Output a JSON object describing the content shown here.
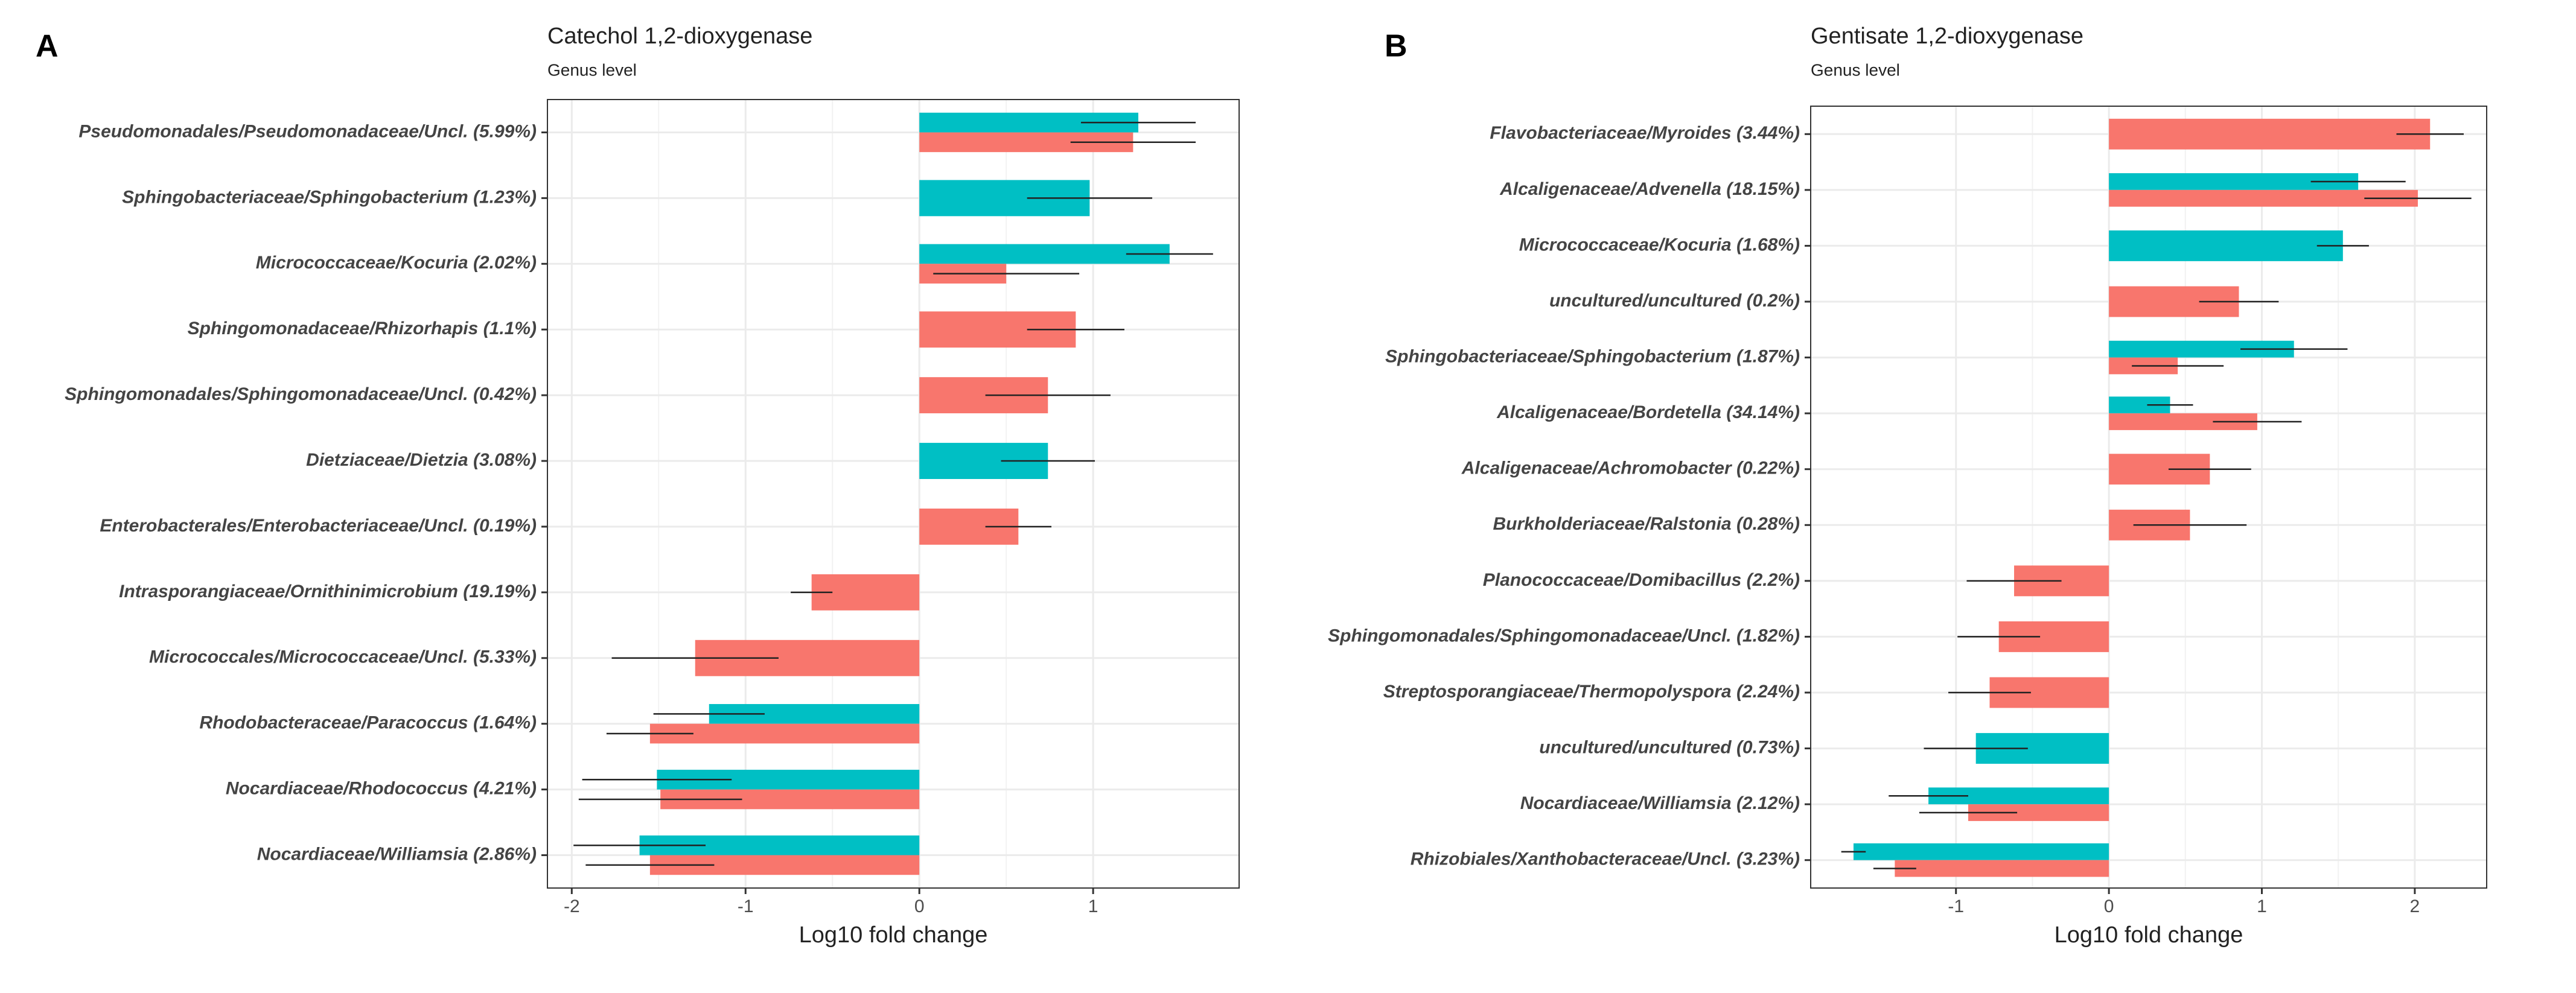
{
  "chart_data": [
    {
      "type": "bar",
      "orientation": "horizontal",
      "panel_label": "A",
      "title": "Catechol 1,2-dioxygenase",
      "subtitle": "Genus level",
      "xlabel": "Log10 fold change",
      "categories": [
        "Pseudomonadales/Pseudomonadaceae/Uncl. (5.99%)",
        "Sphingobacteriaceae/Sphingobacterium (1.23%)",
        "Micrococcaceae/Kocuria (2.02%)",
        "Sphingomonadaceae/Rhizorhapis (1.1%)",
        "Sphingomonadales/Sphingomonadaceae/Uncl. (0.42%)",
        "Dietziaceae/Dietzia (3.08%)",
        "Enterobacterales/Enterobacteriaceae/Uncl. (0.19%)",
        "Intrasporangiaceae/Ornithinimicrobium (19.19%)",
        "Micrococcales/Micrococcaceae/Uncl. (5.33%)",
        "Rhodobacteraceae/Paracoccus (1.64%)",
        "Nocardiaceae/Rhodococcus (4.21%)",
        "Nocardiaceae/Williamsia (2.86%)"
      ],
      "series": [
        {
          "color": "#00BFC4",
          "values": [
            1.26,
            0.98,
            1.44,
            null,
            null,
            0.74,
            null,
            null,
            null,
            -1.21,
            -1.51,
            -1.61
          ],
          "errors": [
            0.33,
            0.36,
            0.25,
            null,
            null,
            0.27,
            null,
            null,
            null,
            0.32,
            0.43,
            0.38
          ]
        },
        {
          "color": "#F8766D",
          "values": [
            1.23,
            null,
            0.5,
            0.9,
            0.74,
            null,
            0.57,
            -0.62,
            -1.29,
            -1.55,
            -1.49,
            -1.55
          ],
          "errors": [
            0.36,
            null,
            0.42,
            0.28,
            0.36,
            null,
            0.19,
            0.12,
            0.48,
            0.25,
            0.47,
            0.37
          ]
        }
      ],
      "xlim": [
        -2.14,
        1.84
      ],
      "xticks": [
        -2,
        -1,
        0,
        1
      ],
      "grid": true
    },
    {
      "type": "bar",
      "orientation": "horizontal",
      "panel_label": "B",
      "title": "Gentisate 1,2-dioxygenase",
      "subtitle": "Genus level",
      "xlabel": "Log10 fold change",
      "categories": [
        "Flavobacteriaceae/Myroides (3.44%)",
        "Alcaligenaceae/Advenella (18.15%)",
        "Micrococcaceae/Kocuria (1.68%)",
        "uncultured/uncultured (0.2%)",
        "Sphingobacteriaceae/Sphingobacterium (1.87%)",
        "Alcaligenaceae/Bordetella (34.14%)",
        "Alcaligenaceae/Achromobacter (0.22%)",
        "Burkholderiaceae/Ralstonia (0.28%)",
        "Planococcaceae/Domibacillus (2.2%)",
        "Sphingomonadales/Sphingomonadaceae/Uncl. (1.82%)",
        "Streptosporangiaceae/Thermopolyspora (2.24%)",
        "uncultured/uncultured (0.73%)",
        "Nocardiaceae/Williamsia (2.12%)",
        "Rhizobiales/Xanthobacteraceae/Uncl. (3.23%)"
      ],
      "series": [
        {
          "color": "#00BFC4",
          "values": [
            null,
            1.63,
            1.53,
            null,
            1.21,
            0.4,
            null,
            null,
            null,
            null,
            null,
            -0.87,
            -1.18,
            -1.67
          ],
          "errors": [
            null,
            0.31,
            0.17,
            null,
            0.35,
            0.15,
            null,
            null,
            null,
            null,
            null,
            0.34,
            0.26,
            0.08
          ]
        },
        {
          "color": "#F8766D",
          "values": [
            2.1,
            2.02,
            null,
            0.85,
            0.45,
            0.97,
            0.66,
            0.53,
            -0.62,
            -0.72,
            -0.78,
            null,
            -0.92,
            -1.4
          ],
          "errors": [
            0.22,
            0.35,
            null,
            0.26,
            0.3,
            0.29,
            0.27,
            0.37,
            0.31,
            0.27,
            0.27,
            null,
            0.32,
            0.14
          ]
        }
      ],
      "xlim": [
        -1.95,
        2.47
      ],
      "xticks": [
        -1,
        0,
        1,
        2
      ],
      "grid": true
    }
  ]
}
